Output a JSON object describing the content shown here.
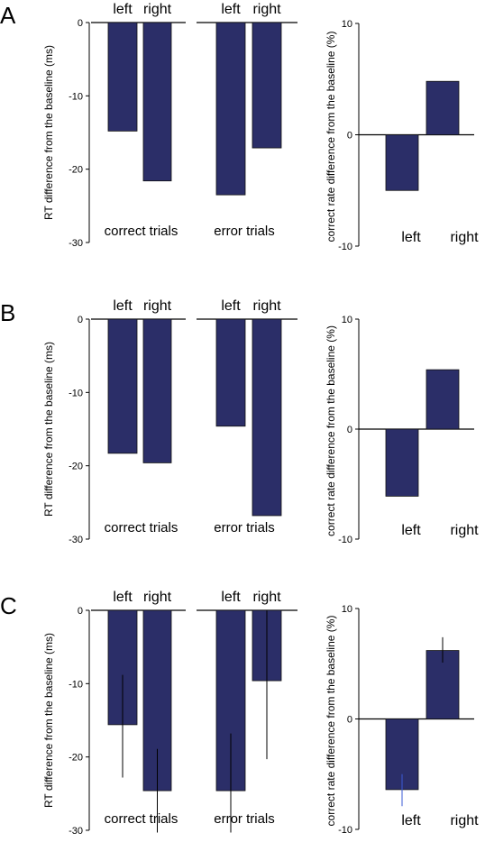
{
  "colors": {
    "bar": "#2b2e68",
    "axis": "#000000",
    "error_bar_rt": "#000000",
    "error_bar_left_rate": "#3b5bd6"
  },
  "chart_data": [
    {
      "panel": "A",
      "type": "bar",
      "ylabel": "RT difference from the baseline (ms)",
      "ylim": [
        -30,
        0
      ],
      "yticks": [
        0,
        -10,
        -20,
        -30
      ],
      "groups": [
        {
          "label": "correct trials",
          "categories": [
            "left",
            "right"
          ],
          "values": [
            -14.8,
            -21.6
          ]
        },
        {
          "label": "error trials",
          "categories": [
            "left",
            "right"
          ],
          "values": [
            -23.5,
            -17.1
          ]
        }
      ]
    },
    {
      "panel": "A",
      "type": "bar",
      "ylabel": "correct rate difference from the baseline (%)",
      "ylim": [
        -10,
        10
      ],
      "yticks": [
        10,
        0,
        -10
      ],
      "categories": [
        "left",
        "right"
      ],
      "values": [
        -5.0,
        4.8
      ]
    },
    {
      "panel": "B",
      "type": "bar",
      "ylabel": "RT difference from the baseline (ms)",
      "ylim": [
        -30,
        0
      ],
      "yticks": [
        0,
        -10,
        -20,
        -30
      ],
      "groups": [
        {
          "label": "correct trials",
          "categories": [
            "left",
            "right"
          ],
          "values": [
            -18.3,
            -19.6
          ]
        },
        {
          "label": "error trials",
          "categories": [
            "left",
            "right"
          ],
          "values": [
            -14.6,
            -26.8
          ]
        }
      ]
    },
    {
      "panel": "B",
      "type": "bar",
      "ylabel": "correct rate difference from the baseline (%)",
      "ylim": [
        -10,
        10
      ],
      "yticks": [
        10,
        0,
        -10
      ],
      "categories": [
        "left",
        "right"
      ],
      "values": [
        -6.1,
        5.4
      ]
    },
    {
      "panel": "C",
      "type": "bar",
      "ylabel": "RT difference from the baseline (ms)",
      "ylim": [
        -30,
        0
      ],
      "yticks": [
        0,
        -10,
        -20,
        -30
      ],
      "groups": [
        {
          "label": "correct trials",
          "categories": [
            "left",
            "right"
          ],
          "values": [
            -15.6,
            -24.6
          ],
          "err_low": [
            -22.8,
            -30.3
          ],
          "err_high": [
            -8.8,
            -18.9
          ]
        },
        {
          "label": "error trials",
          "categories": [
            "left",
            "right"
          ],
          "values": [
            -24.6,
            -9.6
          ],
          "err_low": [
            -30.3,
            -20.3
          ],
          "err_high": [
            -16.8,
            0
          ]
        }
      ]
    },
    {
      "panel": "C",
      "type": "bar",
      "ylabel": "correct rate difference from the baseline (%)",
      "ylim": [
        -10,
        10
      ],
      "yticks": [
        10,
        0,
        -10
      ],
      "categories": [
        "left",
        "right"
      ],
      "values": [
        -6.4,
        6.2
      ],
      "err_low": [
        -7.9,
        5.1
      ],
      "err_high": [
        -5.0,
        7.4
      ]
    }
  ]
}
